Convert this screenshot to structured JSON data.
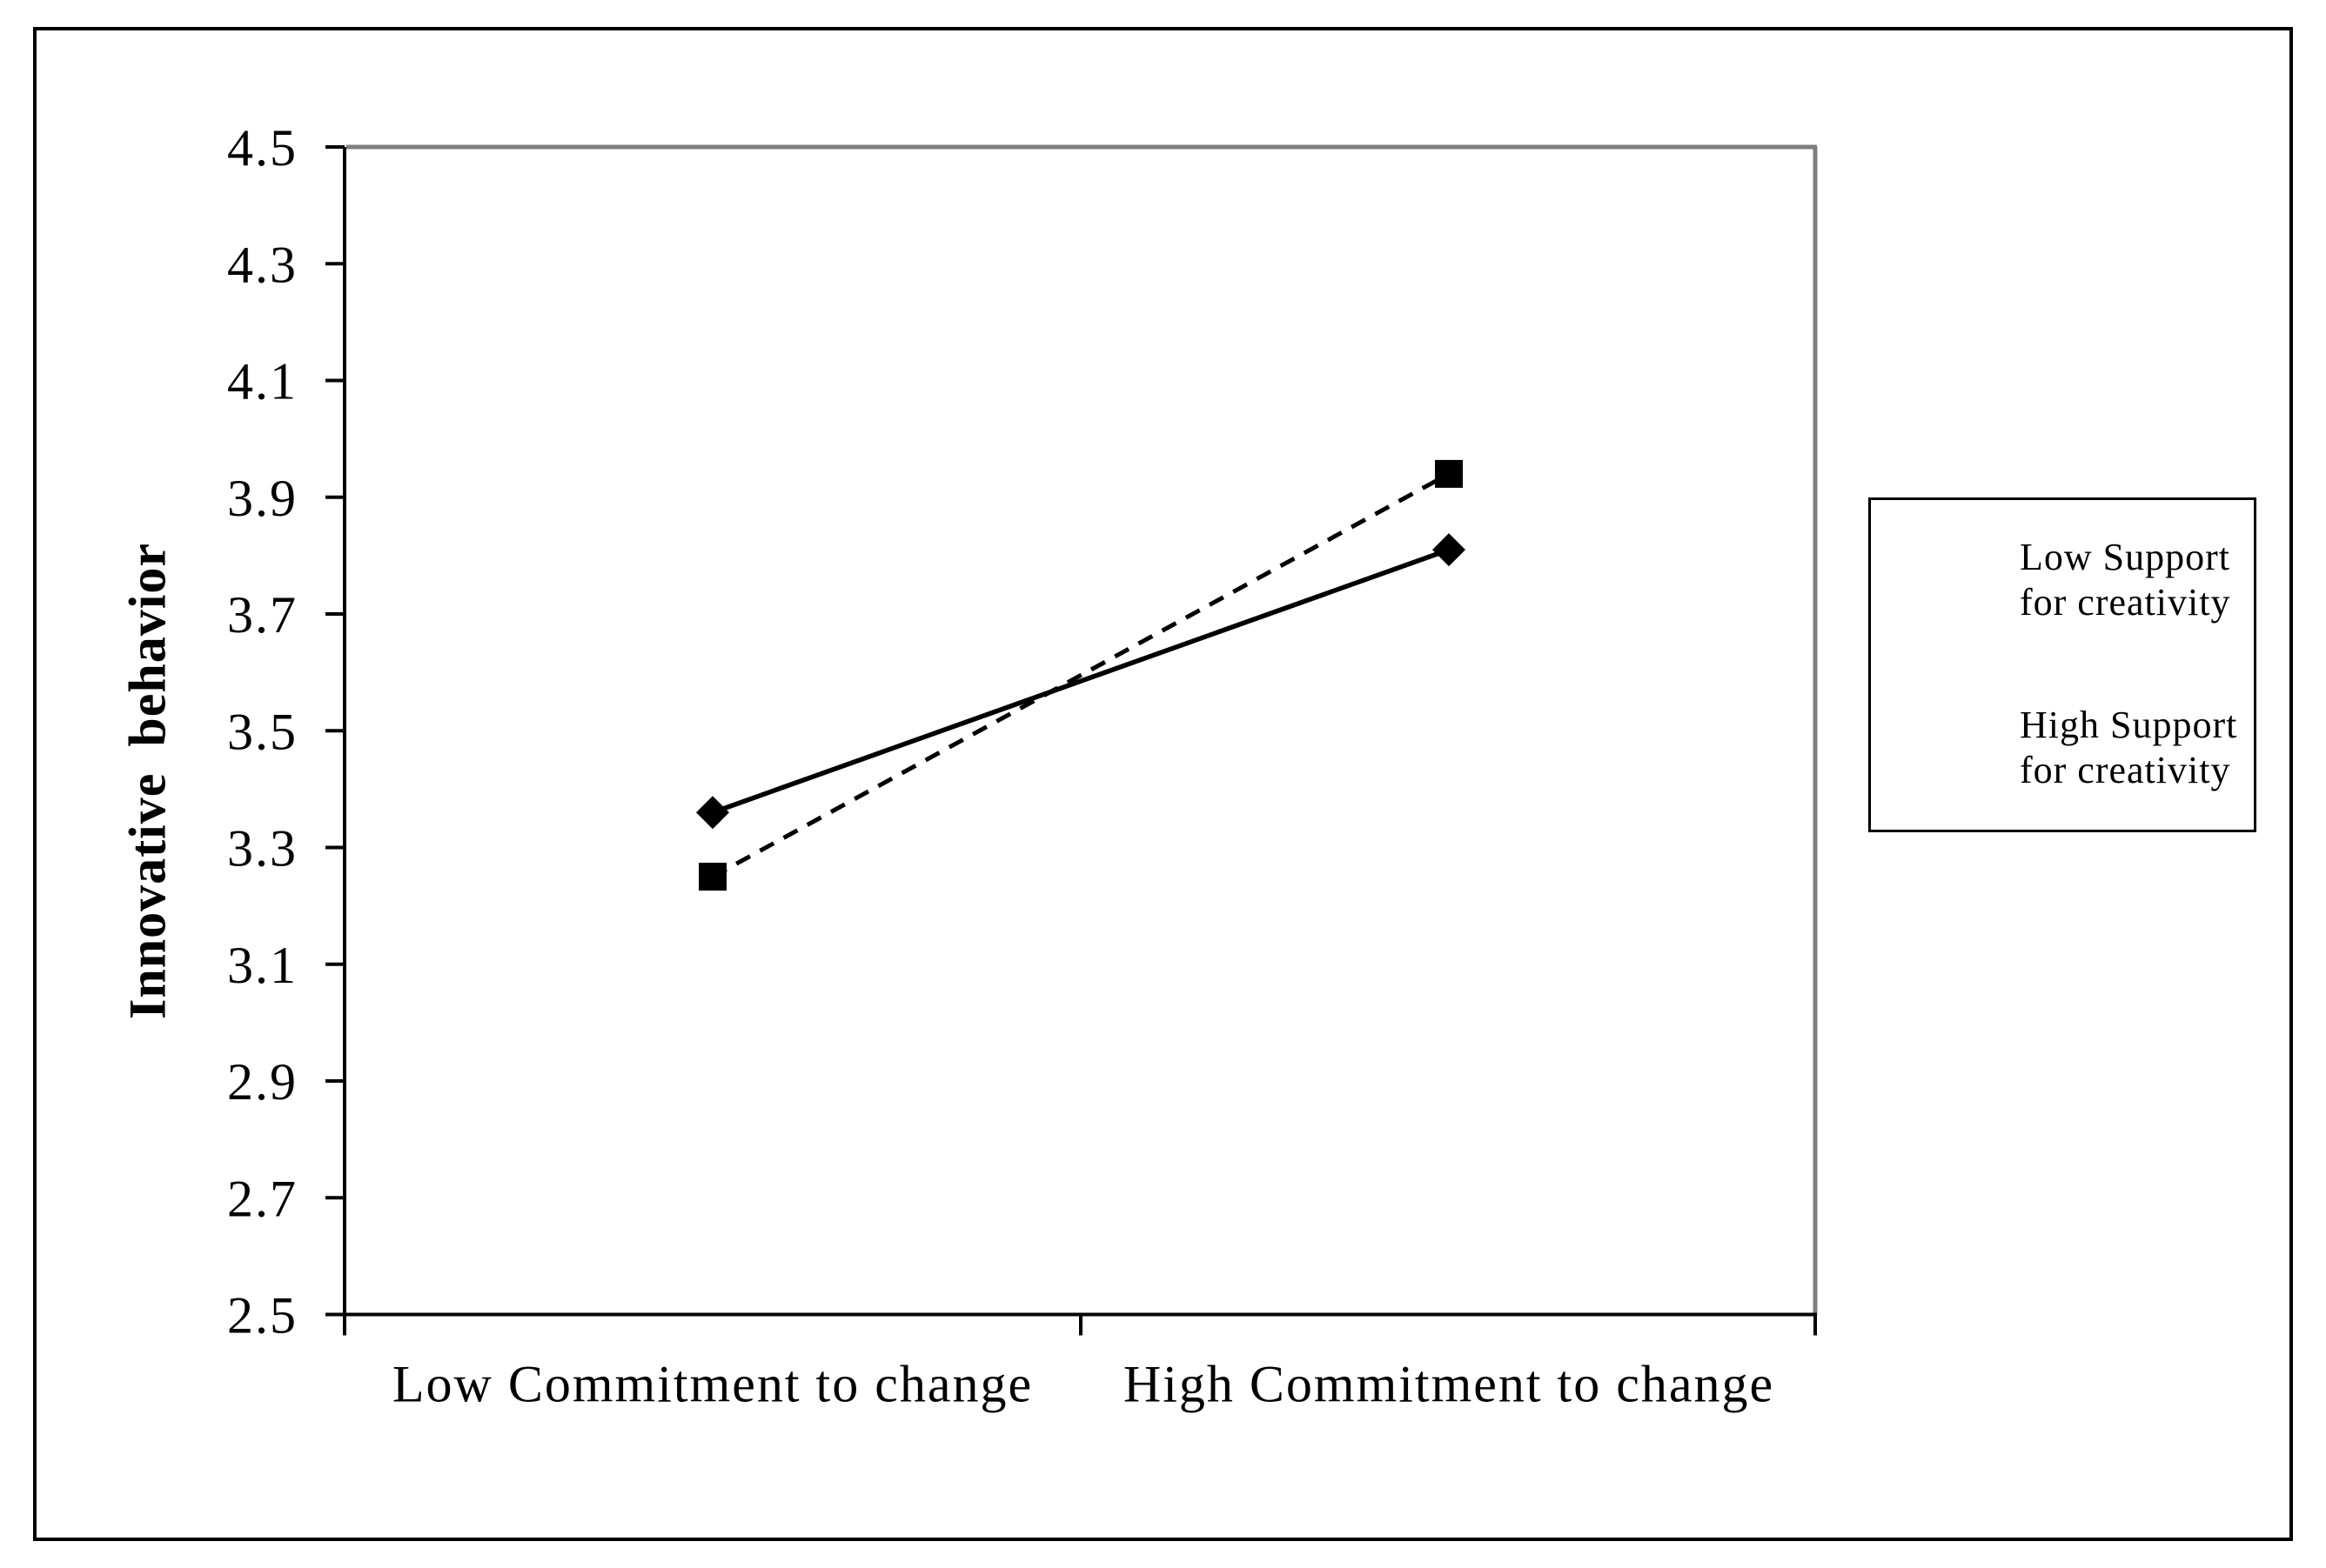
{
  "chart_data": {
    "type": "line",
    "title": "",
    "categories": [
      "Low Commitment to change",
      "High Commitment to change"
    ],
    "series": [
      {
        "name": "Low Support for creativity",
        "name_lines": [
          "Low Support",
          "for creativity"
        ],
        "values": [
          3.36,
          3.81
        ],
        "line_style": "solid",
        "marker": "diamond"
      },
      {
        "name": "High Support for creativity",
        "name_lines": [
          "High Support",
          "for creativity"
        ],
        "values": [
          3.25,
          3.94
        ],
        "line_style": "dashed",
        "marker": "square"
      }
    ],
    "xlabel": "",
    "ylabel": "Innovative behavior",
    "ylim": [
      2.5,
      4.5
    ],
    "ytick_step": 0.2,
    "yticks": [
      "4.5",
      "4.3",
      "4.1",
      "3.9",
      "3.7",
      "3.5",
      "3.3",
      "3.1",
      "2.9",
      "2.7",
      "2.5"
    ],
    "grid": false,
    "legend_position": "right"
  },
  "colors": {
    "series": "#000000",
    "plot_border_top_right": "#7f7f7f",
    "axis": "#000000",
    "background": "#ffffff"
  }
}
